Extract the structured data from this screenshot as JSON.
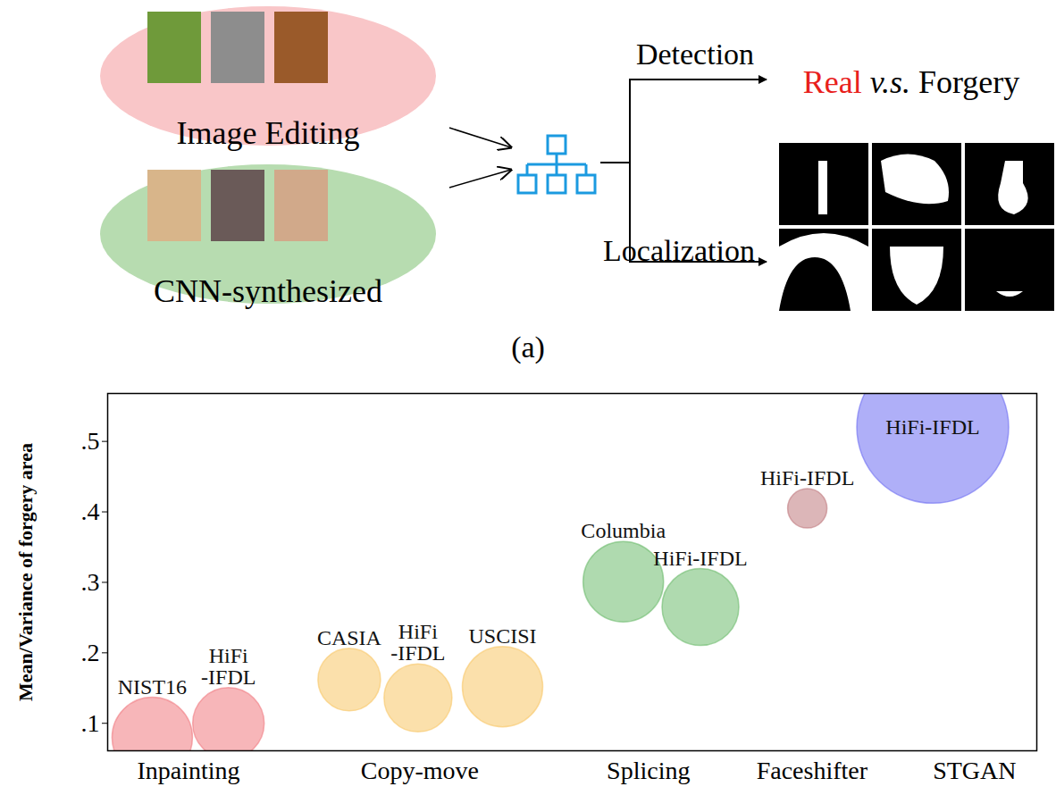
{
  "diagram": {
    "inputs": [
      {
        "label": "Image Editing"
      },
      {
        "label": "CNN-synthesized"
      }
    ],
    "outputs": [
      {
        "label": "Detection",
        "result": [
          "Real",
          "v.s.",
          "Forgery"
        ]
      },
      {
        "label": "Localization"
      }
    ],
    "caption": "(a)"
  },
  "chart_data": {
    "type": "bubble",
    "y_label": "Mean/Variance of forgery area",
    "names": [
      "NIST16",
      "HiFi\n-IFDL",
      "CASIA",
      "HiFi\n-IFDL",
      "USCISI",
      "Columbia",
      "HiFi-IFDL",
      "HiFi-IFDL",
      "HiFi-IFDL"
    ],
    "x": [
      0.48,
      1.3,
      2.6,
      3.34,
      4.25,
      5.55,
      6.38,
      7.53,
      8.88
    ],
    "values": [
      0.08,
      0.1,
      0.162,
      0.136,
      0.152,
      0.301,
      0.265,
      0.405,
      0.52
    ],
    "sizes": [
      45,
      40,
      35,
      38,
      45,
      45,
      43,
      22,
      85
    ],
    "colors": [
      "#f07a80",
      "#f07a80",
      "#f8c766",
      "#f8c766",
      "#f8c766",
      "#6dbb6d",
      "#6dbb6d",
      "#c07a7e",
      "#6e6ef2"
    ],
    "xlim": [
      0,
      10
    ],
    "xticks": [
      {
        "value": 0.87,
        "label": "Inpainting"
      },
      {
        "value": 3.36,
        "label": "Copy-move"
      },
      {
        "value": 5.82,
        "label": "Splicing"
      },
      {
        "value": 7.58,
        "label": "Faceshifter"
      },
      {
        "value": 9.33,
        "label": "STGAN"
      }
    ],
    "ylim": [
      0.061,
      0.568
    ],
    "yticks": [
      {
        "value": 0.1,
        "label": ".1"
      },
      {
        "value": 0.2,
        "label": ".2"
      },
      {
        "value": 0.3,
        "label": ".3"
      },
      {
        "value": 0.4,
        "label": ".4"
      },
      {
        "value": 0.5,
        "label": ".5"
      }
    ],
    "grid": false
  }
}
